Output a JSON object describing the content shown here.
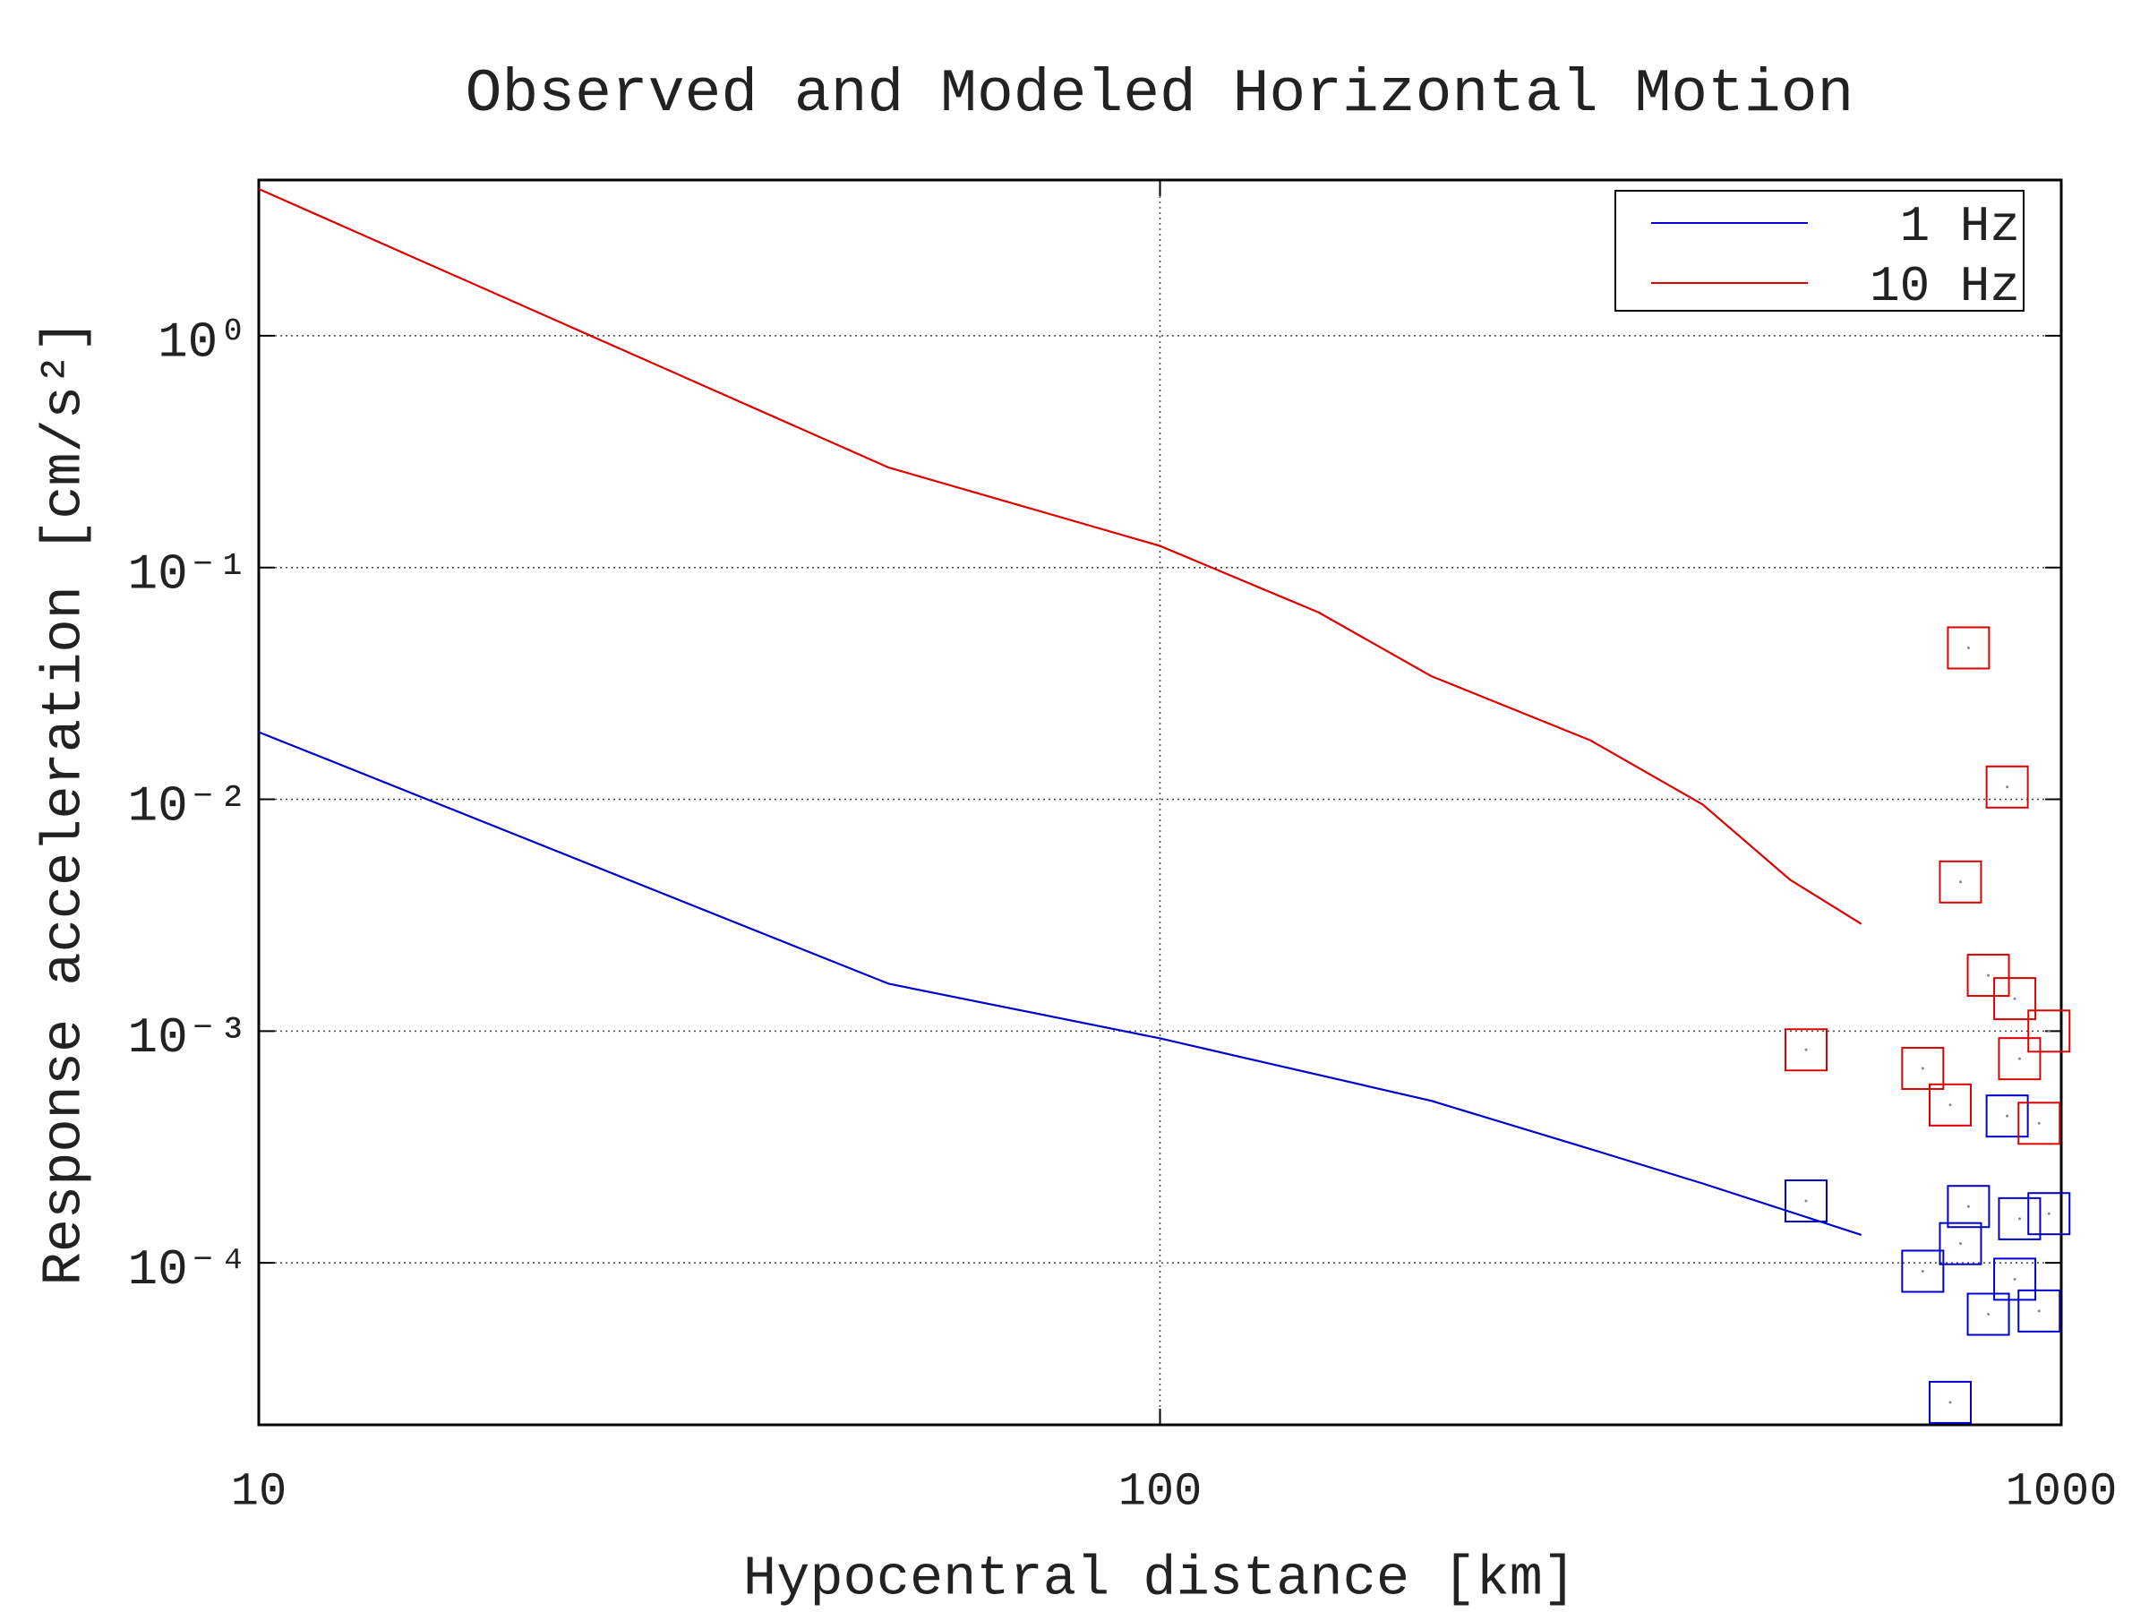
{
  "chart_data": {
    "type": "line",
    "title": "Observed and Modeled Horizontal Motion",
    "x_label": "Hypocentral distance [km]",
    "y_label": "Response acceleration [cm/s²]",
    "xscale": "log",
    "yscale": "log",
    "grid": true,
    "legend": "upper right",
    "xlim": [
      10,
      1000
    ],
    "xticks": [
      10,
      100,
      1000
    ],
    "ylim": [
      2e-05,
      4.7
    ],
    "yticks": [
      {
        "value": 0.0001,
        "label": "10⁻⁴"
      },
      {
        "value": 0.001,
        "label": "10⁻³"
      },
      {
        "value": 0.01,
        "label": "10⁻²"
      },
      {
        "value": 0.1,
        "label": "10⁻¹"
      },
      {
        "value": 1,
        "label": "10⁰"
      }
    ],
    "series": [
      {
        "name": "1 Hz",
        "color": "#0000cc",
        "style": "line",
        "x": [
          10,
          50,
          100,
          200,
          300,
          400,
          600
        ],
        "values": [
          0.0195,
          0.0016,
          0.00093,
          0.0005,
          0.00031,
          0.00022,
          0.000132
        ]
      },
      {
        "name": "10 Hz",
        "color": "#dd0000",
        "style": "line",
        "x": [
          10,
          50,
          100,
          150,
          200,
          300,
          400,
          500,
          600
        ],
        "values": [
          4.3,
          0.27,
          0.124,
          0.064,
          0.034,
          0.018,
          0.0095,
          0.0045,
          0.0029
        ]
      },
      {
        "color": "#0000cc",
        "style": "marker",
        "x": [
          521,
          871,
          789,
          969,
          899,
          773,
          702,
          888,
          830,
          945,
          753
        ],
        "values": [
          0.000185,
          0.00043,
          0.000175,
          0.000163,
          0.000155,
          0.000121,
          9.2e-05,
          8.5e-05,
          6e-05,
          6.2e-05,
          2.5e-05
        ]
      },
      {
        "color": "#dd0000",
        "style": "marker",
        "x": [
          521,
          789,
          871,
          773,
          830,
          888,
          969,
          702,
          753,
          899,
          945
        ],
        "values": [
          0.00083,
          0.045,
          0.0113,
          0.0044,
          0.00174,
          0.00138,
          0.001,
          0.00069,
          0.00048,
          0.00076,
          0.0004
        ]
      }
    ]
  }
}
